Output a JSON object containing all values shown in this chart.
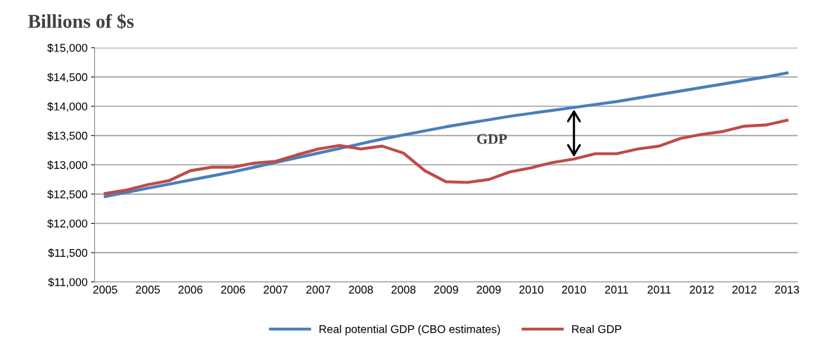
{
  "chart_data": {
    "type": "line",
    "title": "Billions of $s",
    "categories": [
      "2005",
      null,
      "2005",
      null,
      "2006",
      null,
      "2006",
      null,
      "2007",
      null,
      "2007",
      null,
      "2008",
      null,
      "2008",
      null,
      "2009",
      null,
      "2009",
      null,
      "2010",
      null,
      "2010",
      null,
      "2011",
      null,
      "2011",
      null,
      "2012",
      null,
      "2012",
      null,
      "2013"
    ],
    "series": [
      {
        "name": "Real potential GDP (CBO estimates)",
        "color": "#4a7ebb",
        "values": [
          12460,
          12530,
          12600,
          12670,
          12740,
          12810,
          12880,
          12960,
          13040,
          13120,
          13200,
          13280,
          13360,
          13440,
          13510,
          13580,
          13650,
          13710,
          13770,
          13830,
          13880,
          13930,
          13980,
          14030,
          14080,
          14140,
          14200,
          14260,
          14320,
          14380,
          14440,
          14500,
          14570
        ]
      },
      {
        "name": "Real GDP",
        "color": "#be4b48",
        "values": [
          12510,
          12570,
          12660,
          12730,
          12900,
          12960,
          12960,
          13030,
          13060,
          13170,
          13270,
          13330,
          13270,
          13320,
          13200,
          12900,
          12710,
          12700,
          12750,
          12880,
          12950,
          13040,
          13100,
          13190,
          13190,
          13270,
          13320,
          13450,
          13520,
          13570,
          13660,
          13680,
          13760
        ]
      }
    ],
    "ylim": [
      11000,
      15000
    ],
    "yticks": [
      {
        "value": 11000,
        "label": "$11,000"
      },
      {
        "value": 11500,
        "label": "$11,500"
      },
      {
        "value": 12000,
        "label": "$12,000"
      },
      {
        "value": 12500,
        "label": "$12,500"
      },
      {
        "value": 13000,
        "label": "$13,000"
      },
      {
        "value": 13500,
        "label": "$13,500"
      },
      {
        "value": 14000,
        "label": "$14,000"
      },
      {
        "value": 14500,
        "label": "$14,500"
      },
      {
        "value": 15000,
        "label": "$15,000"
      }
    ],
    "annotations": [
      "GDP"
    ],
    "grid": "y",
    "legend": "bottom",
    "marker": "none",
    "line_style": "solid"
  }
}
